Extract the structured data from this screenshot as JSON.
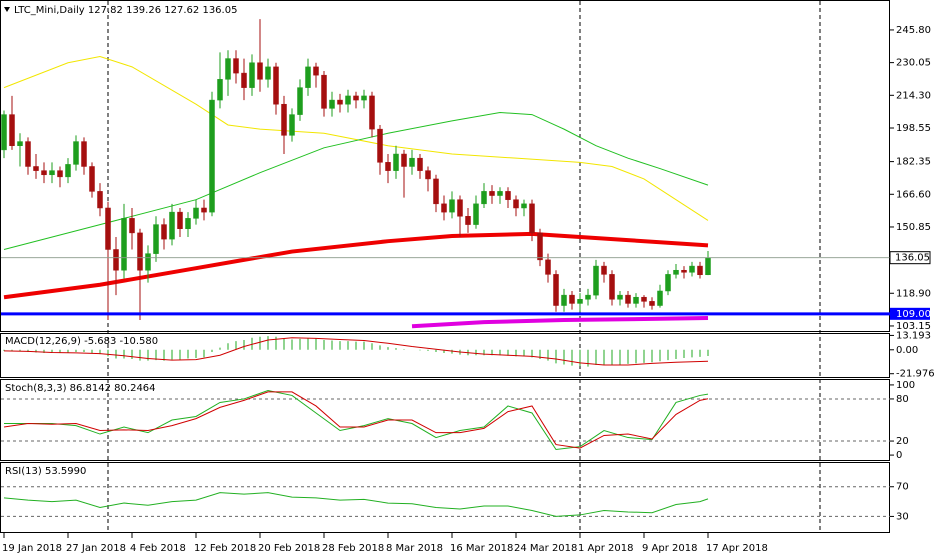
{
  "chart_data": {
    "type": "candlestick",
    "title": "LTC_Mini,Daily",
    "categories": [
      "19 Jan 2018",
      null,
      null,
      null,
      null,
      null,
      null,
      null,
      "27 Jan 2018",
      null,
      null,
      null,
      null,
      null,
      null,
      null,
      "4 Feb 2018",
      null,
      null,
      null,
      null,
      null,
      null,
      null,
      "12 Feb 2018",
      null,
      null,
      null,
      null,
      null,
      null,
      null,
      "20 Feb 2018",
      null,
      null,
      null,
      null,
      null,
      null,
      null,
      "28 Feb 2018",
      null,
      null,
      null,
      null,
      null,
      null,
      null,
      "8 Mar 2018",
      null,
      null,
      null,
      null,
      null,
      null,
      null,
      "16 Mar 2018",
      null,
      null,
      null,
      null,
      null,
      null,
      null,
      "24 Mar 2018",
      null,
      null,
      null,
      null,
      null,
      null,
      null,
      "1 Apr 2018",
      null,
      null,
      null,
      null,
      null,
      null,
      null,
      "9 Apr 2018",
      null,
      null,
      null,
      null,
      null,
      null,
      null,
      "17 Apr 2018"
    ],
    "ohlc": [
      [
        188,
        207,
        184,
        205
      ],
      [
        205,
        214,
        188,
        190
      ],
      [
        190,
        196,
        180,
        192
      ],
      [
        192,
        194,
        176,
        180
      ],
      [
        180,
        186,
        174,
        178
      ],
      [
        178,
        182,
        172,
        176
      ],
      [
        176,
        182,
        172,
        178
      ],
      [
        178,
        180,
        170,
        175
      ],
      [
        175,
        184,
        172,
        181
      ],
      [
        181,
        195,
        178,
        192
      ],
      [
        192,
        194,
        176,
        180
      ],
      [
        180,
        182,
        165,
        168
      ],
      [
        168,
        172,
        156,
        160
      ],
      [
        160,
        163,
        106,
        140
      ],
      [
        140,
        146,
        118,
        130
      ],
      [
        130,
        162,
        126,
        155
      ],
      [
        155,
        160,
        140,
        148
      ],
      [
        148,
        150,
        106,
        130
      ],
      [
        130,
        142,
        124,
        138
      ],
      [
        138,
        156,
        134,
        152
      ],
      [
        152,
        155,
        140,
        145
      ],
      [
        145,
        162,
        142,
        158
      ],
      [
        158,
        160,
        146,
        150
      ],
      [
        150,
        158,
        146,
        155
      ],
      [
        155,
        164,
        152,
        160
      ],
      [
        160,
        164,
        154,
        158
      ],
      [
        158,
        216,
        156,
        212
      ],
      [
        212,
        235,
        208,
        222
      ],
      [
        222,
        236,
        214,
        232
      ],
      [
        232,
        236,
        220,
        225
      ],
      [
        225,
        232,
        212,
        218
      ],
      [
        218,
        234,
        214,
        230
      ],
      [
        230,
        251,
        216,
        222
      ],
      [
        222,
        232,
        218,
        228
      ],
      [
        228,
        230,
        205,
        210
      ],
      [
        210,
        214,
        186,
        195
      ],
      [
        195,
        208,
        192,
        205
      ],
      [
        205,
        222,
        202,
        218
      ],
      [
        218,
        232,
        214,
        228
      ],
      [
        228,
        230,
        218,
        224
      ],
      [
        224,
        226,
        204,
        208
      ],
      [
        208,
        216,
        204,
        212
      ],
      [
        212,
        215,
        206,
        210
      ],
      [
        210,
        217,
        206,
        214
      ],
      [
        214,
        216,
        208,
        212
      ],
      [
        212,
        217,
        208,
        214
      ],
      [
        214,
        216,
        194,
        198
      ],
      [
        198,
        200,
        176,
        182
      ],
      [
        182,
        186,
        172,
        178
      ],
      [
        178,
        190,
        174,
        186
      ],
      [
        186,
        188,
        165,
        180
      ],
      [
        180,
        188,
        176,
        184
      ],
      [
        184,
        186,
        174,
        178
      ],
      [
        178,
        180,
        168,
        174
      ],
      [
        174,
        176,
        158,
        162
      ],
      [
        162,
        166,
        154,
        158
      ],
      [
        158,
        168,
        155,
        164
      ],
      [
        164,
        166,
        146,
        156
      ],
      [
        156,
        160,
        148,
        152
      ],
      [
        152,
        166,
        150,
        162
      ],
      [
        162,
        172,
        160,
        168
      ],
      [
        168,
        171,
        162,
        166
      ],
      [
        166,
        170,
        162,
        168
      ],
      [
        168,
        170,
        160,
        164
      ],
      [
        164,
        166,
        156,
        160
      ],
      [
        160,
        164,
        156,
        162
      ],
      [
        162,
        164,
        144,
        148
      ],
      [
        148,
        150,
        132,
        135
      ],
      [
        135,
        138,
        124,
        128
      ],
      [
        128,
        130,
        110,
        113
      ],
      [
        113,
        121,
        110,
        118
      ],
      [
        118,
        120,
        111,
        114
      ],
      [
        114,
        119,
        110,
        116
      ],
      [
        116,
        121,
        113,
        118
      ],
      [
        118,
        135,
        116,
        132
      ],
      [
        132,
        134,
        124,
        128
      ],
      [
        128,
        130,
        113,
        116
      ],
      [
        116,
        120,
        113,
        118
      ],
      [
        118,
        120,
        112,
        114
      ],
      [
        114,
        119,
        112,
        117
      ],
      [
        117,
        118,
        112,
        115
      ],
      [
        115,
        117,
        111,
        113
      ],
      [
        113,
        123,
        112,
        120
      ],
      [
        120,
        130,
        118,
        128
      ],
      [
        128,
        133,
        126,
        130
      ],
      [
        130,
        132,
        126,
        129
      ],
      [
        129,
        134,
        127,
        132
      ],
      [
        132,
        134,
        126,
        127.82
      ],
      [
        127.82,
        139.26,
        127.62,
        136.05
      ]
    ],
    "up_color": "#1e9e1e",
    "down_color": "#a50f0f",
    "ylim": [
      101.2,
      258.3
    ],
    "yticks": [
      {
        "value": 245.8,
        "label": "245.80"
      },
      230.05,
      {
        "value": 214.3,
        "label": "214.30"
      },
      198.55,
      182.35,
      {
        "value": 166.6,
        "label": "166.60"
      },
      150.85,
      {
        "value": 118.9,
        "label": "118.90"
      },
      103.15
    ],
    "hline": {
      "value": 109,
      "label": "109.00",
      "color": "#0000ff"
    },
    "overlays": [
      {
        "color": "#f2e600",
        "x": [
          0,
          8,
          12,
          16,
          24,
          28,
          32,
          40,
          48,
          56,
          64,
          72,
          76,
          80,
          84,
          88
        ],
        "values": [
          218,
          230,
          233,
          228,
          210,
          200,
          198,
          196,
          190,
          186,
          184,
          182,
          180,
          174,
          164,
          154
        ]
      },
      {
        "color": "#22c022",
        "x": [
          0,
          12,
          24,
          32,
          40,
          48,
          56,
          62,
          66,
          70,
          74,
          78,
          82,
          88
        ],
        "values": [
          140,
          152,
          164,
          177,
          189,
          196,
          202,
          206,
          205,
          198,
          190,
          184,
          179,
          171
        ]
      },
      {
        "color": "#ee0000",
        "bold": true,
        "x": [
          0,
          12,
          24,
          36,
          48,
          56,
          66,
          72,
          78,
          88
        ],
        "values": [
          117,
          123,
          131,
          139,
          144,
          146.5,
          147.5,
          146,
          144.5,
          142
        ]
      },
      {
        "color": "#e000e0",
        "bold": true,
        "x": [
          51,
          60,
          70,
          80,
          88
        ],
        "values": [
          103,
          105,
          106,
          106.5,
          107
        ]
      }
    ],
    "macd": {
      "title": "MACD(12,26,9) -5.683 -10.580",
      "ylim": [
        -25,
        14.5
      ],
      "yticks": [
        13.193,
        {
          "value": 0,
          "label": "0.00"
        },
        -21.976
      ],
      "grid": "none",
      "histogram": {
        "color": "#22a822",
        "values": [
          -1,
          -1,
          -1.5,
          -2,
          -2.5,
          -3,
          -3,
          -3,
          -2.5,
          -2,
          -2,
          -3,
          -4,
          -6,
          -8,
          -8,
          -8.5,
          -10,
          -10,
          -9.5,
          -10,
          -9,
          -9,
          -8,
          -7.5,
          -7,
          -2,
          2,
          6,
          8,
          9,
          11,
          12,
          12.5,
          12,
          10,
          9.5,
          10,
          10.5,
          10.5,
          9,
          8.5,
          8,
          8,
          7.5,
          7.5,
          6,
          4,
          2.5,
          1.5,
          0.5,
          0,
          -0.5,
          -1,
          -2,
          -3,
          -3.5,
          -4.5,
          -5,
          -5,
          -5,
          -5,
          -5,
          -5.5,
          -6,
          -6,
          -7,
          -8.5,
          -10,
          -12.5,
          -13.5,
          -14.5,
          -15,
          -15.5,
          -14,
          -13.5,
          -13.5,
          -13.5,
          -13,
          -12.5,
          -12,
          -11.5,
          -10.5,
          -9.5,
          -8.5,
          -7.5,
          -7,
          -6.5,
          -5.683
        ]
      },
      "signal": {
        "color": "#d00000",
        "x": [
          0,
          3,
          6,
          9,
          12,
          15,
          18,
          21,
          24,
          27,
          30,
          33,
          36,
          39,
          42,
          45,
          48,
          51,
          54,
          57,
          60,
          63,
          66,
          69,
          72,
          75,
          78,
          81,
          84,
          87,
          88
        ],
        "values": [
          -1,
          -1.5,
          -2.5,
          -2.8,
          -3.5,
          -5.5,
          -8,
          -9.5,
          -9,
          -5,
          3,
          9,
          11,
          10.5,
          9.5,
          8.5,
          6,
          3,
          0.5,
          -2,
          -4,
          -5,
          -6,
          -8.5,
          -12,
          -14,
          -14,
          -12.5,
          -11.5,
          -10.8,
          -10.58
        ]
      }
    },
    "stoch": {
      "title": "Stoch(8,3,3) 86.8142 80.2464",
      "ylim": [
        -7,
        107
      ],
      "yticks": [
        100,
        80,
        20,
        0
      ],
      "grid": "inner",
      "x": [
        0,
        3,
        6,
        9,
        12,
        15,
        18,
        21,
        24,
        27,
        30,
        33,
        36,
        39,
        42,
        45,
        48,
        51,
        54,
        57,
        60,
        63,
        66,
        69,
        72,
        75,
        78,
        81,
        84,
        87,
        88
      ],
      "series": [
        {
          "color": "#22b022",
          "values": [
            45,
            45,
            45,
            42,
            30,
            40,
            32,
            50,
            55,
            75,
            80,
            92,
            85,
            60,
            35,
            42,
            52,
            45,
            25,
            35,
            40,
            70,
            60,
            8,
            12,
            35,
            25,
            22,
            75,
            85,
            86.8142
          ]
        },
        {
          "color": "#d00000",
          "values": [
            40,
            45,
            44,
            45,
            35,
            36,
            35,
            42,
            52,
            68,
            78,
            90,
            90,
            70,
            40,
            40,
            50,
            50,
            32,
            32,
            38,
            62,
            70,
            15,
            10,
            28,
            30,
            23,
            58,
            78,
            80.2464
          ]
        }
      ]
    },
    "rsi": {
      "title": "RSI(13) 53.5990",
      "ylim": [
        9,
        102
      ],
      "yticks": [
        70,
        30
      ],
      "grid": "all",
      "x": [
        0,
        3,
        6,
        9,
        12,
        15,
        18,
        21,
        24,
        27,
        30,
        33,
        36,
        39,
        42,
        45,
        48,
        51,
        54,
        57,
        60,
        63,
        66,
        69,
        72,
        75,
        78,
        81,
        84,
        87,
        88
      ],
      "series": [
        {
          "color": "#22b022",
          "values": [
            55,
            52,
            50,
            52,
            42,
            48,
            45,
            50,
            52,
            62,
            60,
            62,
            56,
            55,
            52,
            53,
            48,
            47,
            42,
            40,
            44,
            44,
            38,
            30,
            32,
            38,
            36,
            35,
            46,
            50,
            53.599
          ]
        }
      ]
    }
  }
}
